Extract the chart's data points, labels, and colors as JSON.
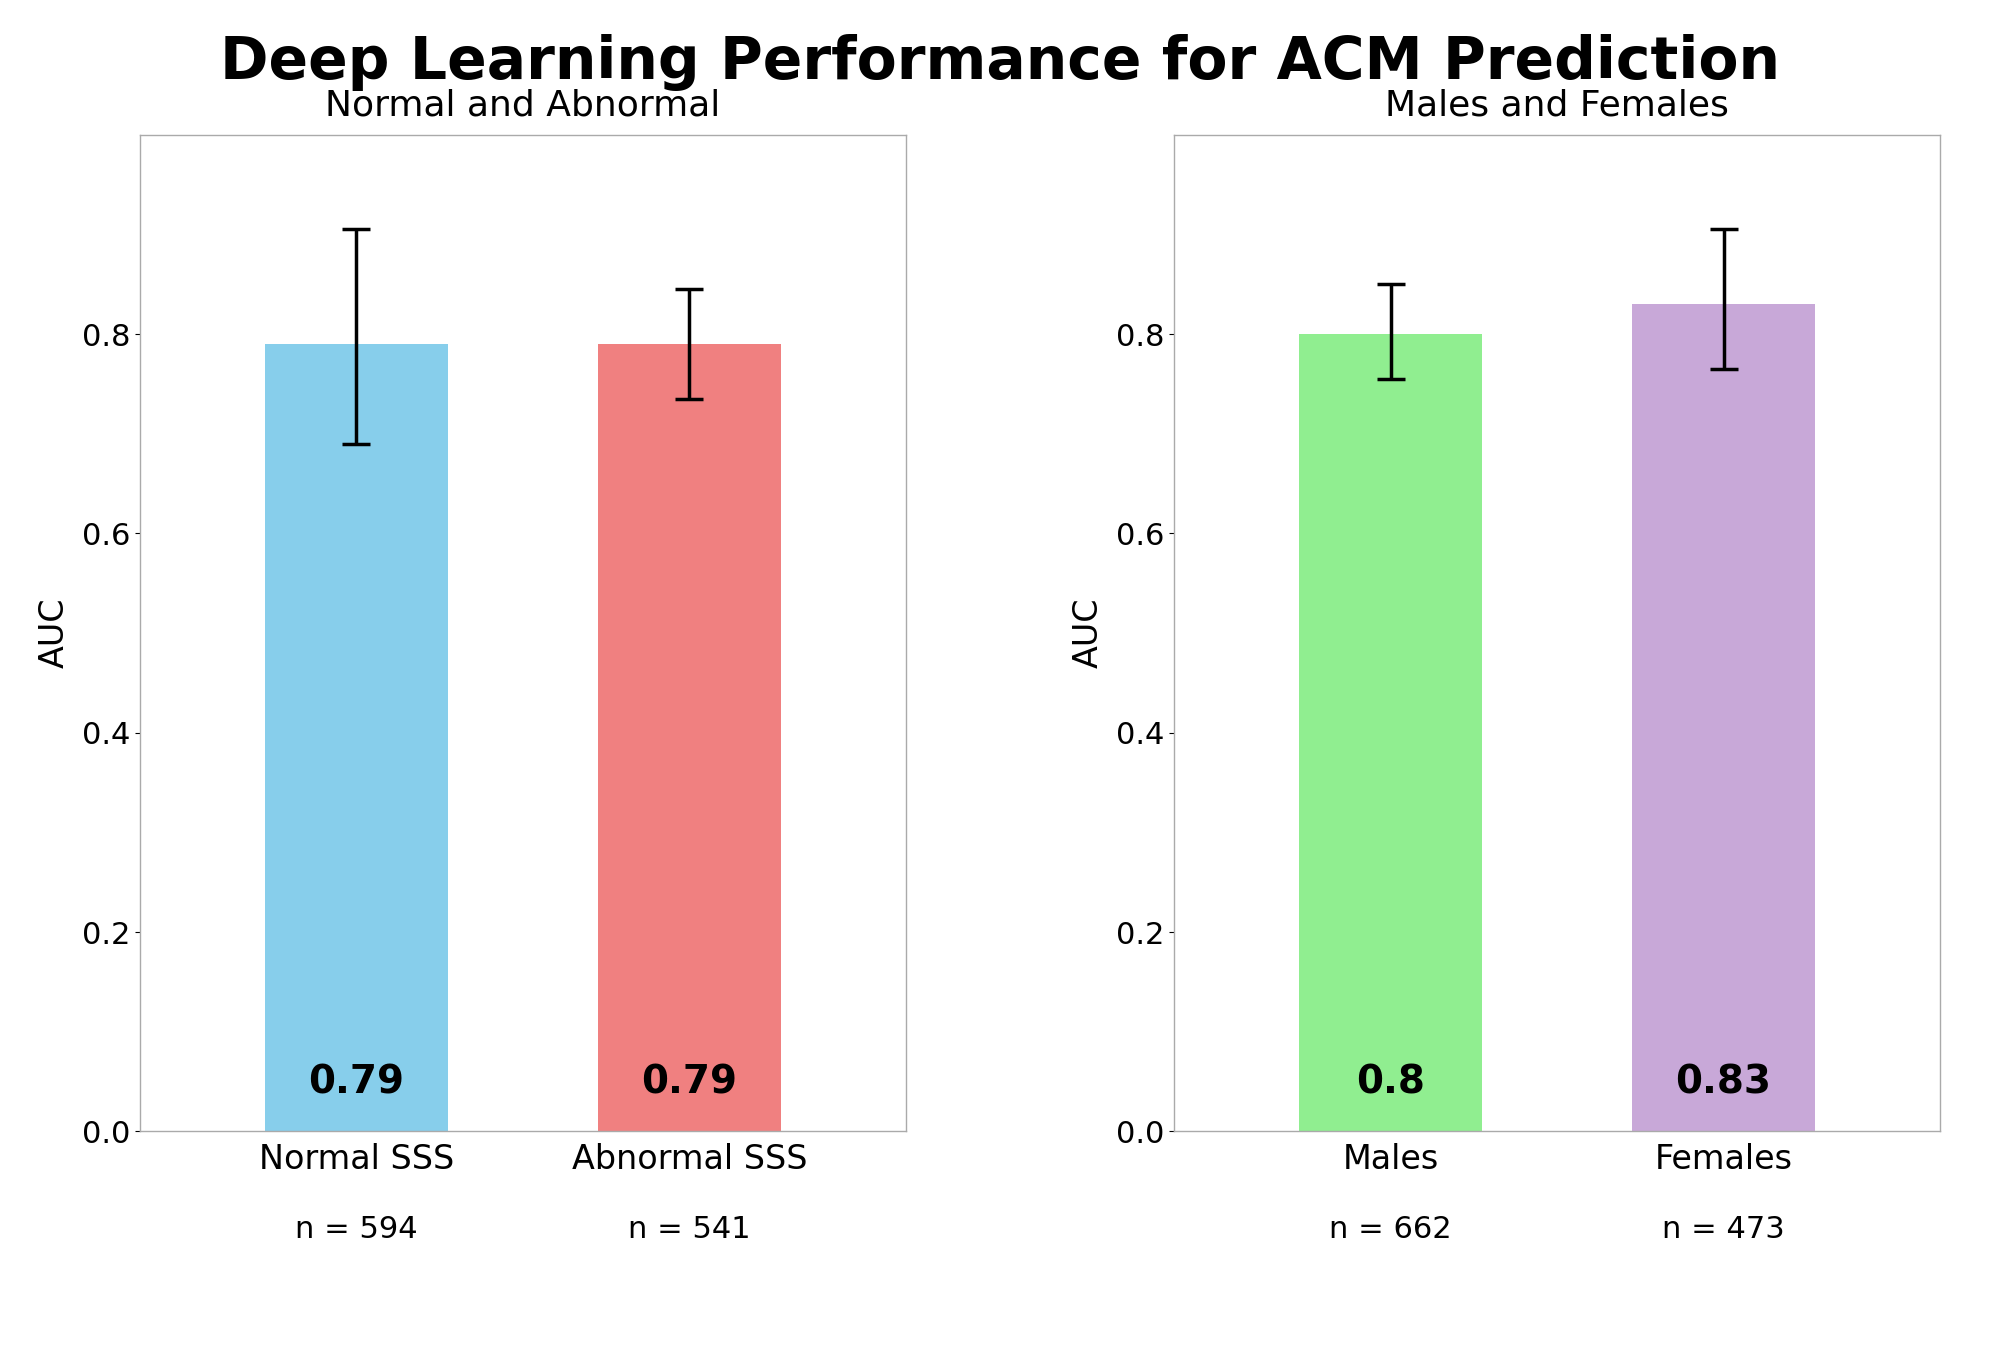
{
  "title": "Deep Learning Performance for ACM Prediction",
  "title_fontsize": 42,
  "title_fontweight": "black",
  "subplot1_title": "Normal and Abnormal",
  "subplot2_title": "Males and Females",
  "subplot_title_fontsize": 26,
  "bars1": {
    "categories": [
      "Normal SSS",
      "Abnormal SSS"
    ],
    "values": [
      0.79,
      0.79
    ],
    "errors_upper": [
      0.115,
      0.055
    ],
    "errors_lower": [
      0.1,
      0.055
    ],
    "colors": [
      "#87CEEB",
      "#F08080"
    ],
    "ns": [
      "n = 594",
      "n = 541"
    ]
  },
  "bars2": {
    "categories": [
      "Males",
      "Females"
    ],
    "values": [
      0.8,
      0.83
    ],
    "errors_upper": [
      0.05,
      0.075
    ],
    "errors_lower": [
      0.045,
      0.065
    ],
    "colors": [
      "#90EE90",
      "#C8A8D8"
    ],
    "ns": [
      "n = 662",
      "n = 473"
    ]
  },
  "ylabel": "AUC",
  "ylabel_fontsize": 24,
  "ylim": [
    0.0,
    1.0
  ],
  "yticks": [
    0.0,
    0.2,
    0.4,
    0.6,
    0.8
  ],
  "tick_fontsize": 22,
  "value_label_fontsize": 28,
  "xtick_fontsize": 24,
  "n_label_fontsize": 22,
  "bar_width": 0.55,
  "capsize": 10,
  "errorbar_linewidth": 2.5,
  "errorbar_capthick": 2.5,
  "background_color": "#ffffff"
}
